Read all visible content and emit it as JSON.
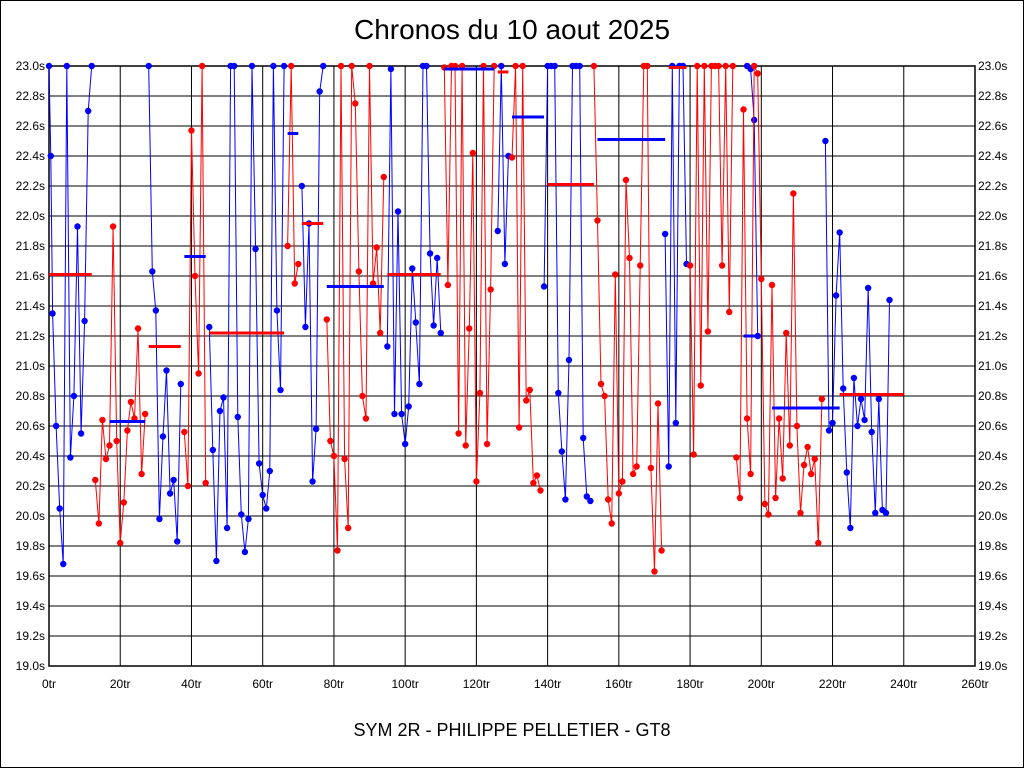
{
  "chart_data": {
    "type": "line",
    "title": "Chronos du 10 aout 2025",
    "footer": "SYM 2R - PHILIPPE PELLETIER - GT8",
    "xlim": [
      0,
      260
    ],
    "ylim": [
      19.0,
      23.0
    ],
    "x_ticks": [
      0,
      20,
      40,
      60,
      80,
      100,
      120,
      140,
      160,
      180,
      200,
      220,
      240,
      260
    ],
    "x_tick_labels": [
      "0tr",
      "20tr",
      "40tr",
      "60tr",
      "80tr",
      "100tr",
      "120tr",
      "140tr",
      "160tr",
      "180tr",
      "200tr",
      "220tr",
      "240tr",
      "260tr"
    ],
    "y_ticks": [
      19.0,
      19.2,
      19.4,
      19.6,
      19.8,
      20.0,
      20.2,
      20.4,
      20.6,
      20.8,
      21.0,
      21.2,
      21.4,
      21.6,
      21.8,
      22.0,
      22.2,
      22.4,
      22.6,
      22.8,
      23.0
    ],
    "y_tick_labels": [
      "19.0s",
      "19.2s",
      "19.4s",
      "19.6s",
      "19.8s",
      "20.0s",
      "20.2s",
      "20.4s",
      "20.6s",
      "20.8s",
      "21.0s",
      "21.2s",
      "21.4s",
      "21.6s",
      "21.8s",
      "22.0s",
      "22.2s",
      "22.4s",
      "22.6s",
      "22.8s",
      "23.0s"
    ],
    "grid": true,
    "colors": {
      "blue": "#0000ff",
      "red": "#ff0000"
    },
    "series": [
      {
        "name": "blue",
        "color": "#0000ff",
        "points": [
          [
            0,
            23.0
          ],
          [
            0.5,
            22.4
          ],
          [
            1,
            21.35
          ],
          [
            2,
            20.6
          ],
          [
            3,
            20.05
          ],
          [
            4,
            19.68
          ],
          [
            5,
            23.0
          ],
          [
            6,
            20.39
          ],
          [
            7,
            20.8
          ],
          [
            8,
            21.93
          ],
          [
            9,
            20.55
          ],
          [
            10,
            21.3
          ],
          [
            11,
            22.7
          ],
          [
            12,
            23.0
          ]
        ]
      },
      {
        "name": "red",
        "color": "#ff0000",
        "points": [
          [
            13,
            20.24
          ],
          [
            14,
            19.95
          ],
          [
            15,
            20.64
          ],
          [
            16,
            20.38
          ],
          [
            17,
            20.47
          ],
          [
            18,
            21.93
          ],
          [
            19,
            20.5
          ],
          [
            20,
            19.82
          ],
          [
            21,
            20.09
          ],
          [
            22,
            20.57
          ],
          [
            23,
            20.76
          ],
          [
            24,
            20.65
          ],
          [
            25,
            21.25
          ],
          [
            26,
            20.28
          ],
          [
            27,
            20.68
          ]
        ]
      },
      {
        "name": "blue",
        "color": "#0000ff",
        "points": [
          [
            28,
            23.0
          ],
          [
            29,
            21.63
          ],
          [
            30,
            21.37
          ],
          [
            31,
            19.98
          ],
          [
            32,
            20.53
          ],
          [
            33,
            20.97
          ],
          [
            34,
            20.15
          ],
          [
            35,
            20.24
          ],
          [
            36,
            19.83
          ],
          [
            37,
            20.88
          ]
        ]
      },
      {
        "name": "red",
        "color": "#ff0000",
        "points": [
          [
            38,
            20.56
          ],
          [
            39,
            20.2
          ],
          [
            40,
            22.57
          ],
          [
            41,
            21.6
          ],
          [
            42,
            20.95
          ],
          [
            43,
            23.0
          ],
          [
            44,
            20.22
          ]
        ]
      },
      {
        "name": "blue",
        "color": "#0000ff",
        "points": [
          [
            45,
            21.26
          ],
          [
            46,
            20.44
          ],
          [
            47,
            19.7
          ],
          [
            48,
            20.7
          ],
          [
            49,
            20.79
          ],
          [
            50,
            19.92
          ],
          [
            51,
            23.0
          ],
          [
            52,
            23.0
          ],
          [
            53,
            20.66
          ],
          [
            54,
            20.01
          ],
          [
            55,
            19.76
          ],
          [
            56,
            19.98
          ],
          [
            57,
            23.0
          ],
          [
            58,
            21.78
          ],
          [
            59,
            20.35
          ],
          [
            60,
            20.14
          ],
          [
            61,
            20.05
          ],
          [
            62,
            20.3
          ],
          [
            63,
            23.0
          ],
          [
            64,
            21.37
          ],
          [
            65,
            20.84
          ],
          [
            66,
            23.0
          ]
        ]
      },
      {
        "name": "red",
        "color": "#ff0000",
        "points": [
          [
            67,
            21.8
          ],
          [
            68,
            23.0
          ],
          [
            69,
            21.55
          ],
          [
            70,
            21.68
          ]
        ]
      },
      {
        "name": "blue",
        "color": "#0000ff",
        "points": [
          [
            71,
            22.2
          ],
          [
            72,
            21.26
          ],
          [
            73,
            21.95
          ],
          [
            74,
            20.23
          ],
          [
            75,
            20.58
          ],
          [
            76,
            22.83
          ],
          [
            77,
            23.0
          ]
        ]
      },
      {
        "name": "red",
        "color": "#ff0000",
        "points": [
          [
            78,
            21.31
          ],
          [
            79,
            20.5
          ],
          [
            80,
            20.4
          ],
          [
            81,
            19.77
          ],
          [
            82,
            23.0
          ],
          [
            83,
            20.38
          ],
          [
            84,
            19.92
          ],
          [
            85,
            23.0
          ],
          [
            86,
            22.75
          ],
          [
            87,
            21.63
          ],
          [
            88,
            20.8
          ],
          [
            89,
            20.65
          ],
          [
            90,
            23.0
          ],
          [
            91,
            21.55
          ],
          [
            92,
            21.79
          ],
          [
            93,
            21.22
          ],
          [
            94,
            22.26
          ]
        ]
      },
      {
        "name": "blue",
        "color": "#0000ff",
        "points": [
          [
            95,
            21.13
          ],
          [
            96,
            22.98
          ],
          [
            97,
            20.68
          ],
          [
            98,
            22.03
          ],
          [
            99,
            20.68
          ],
          [
            100,
            20.48
          ],
          [
            101,
            20.73
          ],
          [
            102,
            21.65
          ],
          [
            103,
            21.29
          ],
          [
            104,
            20.88
          ],
          [
            105,
            23.0
          ],
          [
            106,
            23.0
          ],
          [
            107,
            21.75
          ],
          [
            108,
            21.27
          ],
          [
            109,
            21.72
          ],
          [
            110,
            21.22
          ]
        ]
      },
      {
        "name": "red",
        "color": "#ff0000",
        "points": [
          [
            111,
            22.99
          ],
          [
            112,
            21.54
          ],
          [
            113,
            23.0
          ],
          [
            114,
            23.0
          ],
          [
            115,
            20.55
          ],
          [
            116,
            23.0
          ],
          [
            117,
            20.47
          ],
          [
            118,
            21.25
          ],
          [
            119,
            22.42
          ],
          [
            120,
            20.23
          ],
          [
            121,
            20.82
          ],
          [
            122,
            23.0
          ],
          [
            123,
            20.48
          ],
          [
            124,
            21.51
          ],
          [
            125,
            23.0
          ]
        ]
      },
      {
        "name": "blue",
        "color": "#0000ff",
        "points": [
          [
            126,
            21.9
          ],
          [
            127,
            23.0
          ],
          [
            128,
            21.68
          ],
          [
            129,
            22.4
          ]
        ]
      },
      {
        "name": "red",
        "color": "#ff0000",
        "points": [
          [
            130,
            22.39
          ],
          [
            131,
            23.0
          ],
          [
            132,
            20.59
          ],
          [
            133,
            23.0
          ],
          [
            134,
            20.77
          ],
          [
            135,
            20.84
          ],
          [
            136,
            20.22
          ],
          [
            137,
            20.27
          ],
          [
            138,
            20.17
          ]
        ]
      },
      {
        "name": "blue",
        "color": "#0000ff",
        "points": [
          [
            139,
            21.53
          ],
          [
            140,
            23.0
          ],
          [
            141,
            23.0
          ],
          [
            142,
            23.0
          ],
          [
            143,
            20.82
          ],
          [
            144,
            20.43
          ],
          [
            145,
            20.11
          ],
          [
            146,
            21.04
          ],
          [
            147,
            23.0
          ],
          [
            148,
            23.0
          ],
          [
            149,
            23.0
          ],
          [
            150,
            20.52
          ],
          [
            151,
            20.13
          ],
          [
            152,
            20.1
          ]
        ]
      },
      {
        "name": "red",
        "color": "#ff0000",
        "points": [
          [
            153,
            23.0
          ],
          [
            154,
            21.97
          ],
          [
            155,
            20.88
          ],
          [
            156,
            20.8
          ],
          [
            157,
            20.11
          ],
          [
            158,
            19.95
          ],
          [
            159,
            21.61
          ],
          [
            160,
            20.15
          ],
          [
            161,
            20.23
          ],
          [
            162,
            22.24
          ],
          [
            163,
            21.72
          ],
          [
            164,
            20.28
          ],
          [
            165,
            20.33
          ],
          [
            166,
            21.67
          ],
          [
            167,
            23.0
          ],
          [
            168,
            23.0
          ],
          [
            169,
            20.32
          ],
          [
            170,
            19.63
          ],
          [
            171,
            20.75
          ],
          [
            172,
            19.77
          ]
        ]
      },
      {
        "name": "blue",
        "color": "#0000ff",
        "points": [
          [
            173,
            21.88
          ],
          [
            174,
            20.33
          ],
          [
            175,
            23.0
          ],
          [
            176,
            20.62
          ],
          [
            177,
            23.0
          ],
          [
            178,
            23.0
          ],
          [
            179,
            21.68
          ]
        ]
      },
      {
        "name": "red",
        "color": "#ff0000",
        "points": [
          [
            180,
            21.67
          ],
          [
            181,
            20.41
          ],
          [
            182,
            23.0
          ],
          [
            183,
            20.87
          ],
          [
            184,
            23.0
          ],
          [
            185,
            21.23
          ],
          [
            186,
            23.0
          ],
          [
            187,
            23.0
          ],
          [
            188,
            23.0
          ],
          [
            189,
            21.67
          ],
          [
            190,
            23.0
          ],
          [
            191,
            21.36
          ],
          [
            192,
            23.0
          ]
        ]
      },
      {
        "name": "blue",
        "color": "#0000ff",
        "points": [
          [
            196,
            23.0
          ],
          [
            197,
            22.98
          ],
          [
            198,
            22.64
          ],
          [
            199,
            21.2
          ]
        ]
      },
      {
        "name": "red",
        "color": "#ff0000",
        "points": [
          [
            193,
            20.39
          ],
          [
            194,
            20.12
          ],
          [
            195,
            22.71
          ],
          [
            196,
            20.65
          ],
          [
            197,
            20.28
          ],
          [
            198,
            23.0
          ],
          [
            199,
            22.95
          ],
          [
            200,
            21.58
          ],
          [
            201,
            20.08
          ],
          [
            202,
            20.01
          ],
          [
            203,
            21.54
          ],
          [
            204,
            20.12
          ],
          [
            205,
            20.65
          ],
          [
            206,
            20.25
          ],
          [
            207,
            21.22
          ],
          [
            208,
            20.47
          ],
          [
            209,
            22.15
          ],
          [
            210,
            20.6
          ],
          [
            211,
            20.02
          ],
          [
            212,
            20.34
          ],
          [
            213,
            20.46
          ],
          [
            214,
            20.28
          ],
          [
            215,
            20.38
          ],
          [
            216,
            19.82
          ],
          [
            217,
            20.78
          ]
        ]
      },
      {
        "name": "blue",
        "color": "#0000ff",
        "points": [
          [
            218,
            22.5
          ],
          [
            219,
            20.57
          ],
          [
            220,
            20.62
          ],
          [
            221,
            21.47
          ],
          [
            222,
            21.89
          ],
          [
            223,
            20.85
          ],
          [
            224,
            20.29
          ],
          [
            225,
            19.92
          ],
          [
            226,
            20.92
          ],
          [
            227,
            20.6
          ],
          [
            228,
            20.78
          ],
          [
            229,
            20.64
          ],
          [
            230,
            21.52
          ],
          [
            231,
            20.56
          ],
          [
            232,
            20.02
          ],
          [
            233,
            20.78
          ],
          [
            234,
            20.04
          ],
          [
            235,
            20.02
          ],
          [
            236,
            21.44
          ]
        ]
      }
    ],
    "averages": [
      {
        "color": "#ff0000",
        "x0": 0,
        "x1": 12,
        "value": 21.61
      },
      {
        "color": "#0000ff",
        "x0": 17,
        "x1": 27,
        "value": 20.63
      },
      {
        "color": "#ff0000",
        "x0": 28,
        "x1": 37,
        "value": 21.13
      },
      {
        "color": "#0000ff",
        "x0": 38,
        "x1": 44,
        "value": 21.73
      },
      {
        "color": "#ff0000",
        "x0": 45,
        "x1": 66,
        "value": 21.22
      },
      {
        "color": "#0000ff",
        "x0": 67,
        "x1": 70,
        "value": 22.55
      },
      {
        "color": "#ff0000",
        "x0": 71,
        "x1": 77,
        "value": 21.95
      },
      {
        "color": "#0000ff",
        "x0": 78,
        "x1": 94,
        "value": 21.53
      },
      {
        "color": "#ff0000",
        "x0": 95,
        "x1": 110,
        "value": 21.61
      },
      {
        "color": "#0000ff",
        "x0": 111,
        "x1": 125,
        "value": 22.98
      },
      {
        "color": "#ff0000",
        "x0": 126,
        "x1": 129,
        "value": 22.96
      },
      {
        "color": "#0000ff",
        "x0": 130,
        "x1": 139,
        "value": 22.66
      },
      {
        "color": "#ff0000",
        "x0": 140,
        "x1": 153,
        "value": 22.21
      },
      {
        "color": "#0000ff",
        "x0": 154,
        "x1": 173,
        "value": 22.51
      },
      {
        "color": "#ff0000",
        "x0": 174,
        "x1": 179,
        "value": 22.99
      },
      {
        "color": "#0000ff",
        "x0": 195,
        "x1": 199,
        "value": 21.2
      },
      {
        "color": "#0000ff",
        "x0": 203,
        "x1": 222,
        "value": 20.72
      },
      {
        "color": "#ff0000",
        "x0": 222,
        "x1": 240,
        "value": 20.81
      }
    ]
  }
}
